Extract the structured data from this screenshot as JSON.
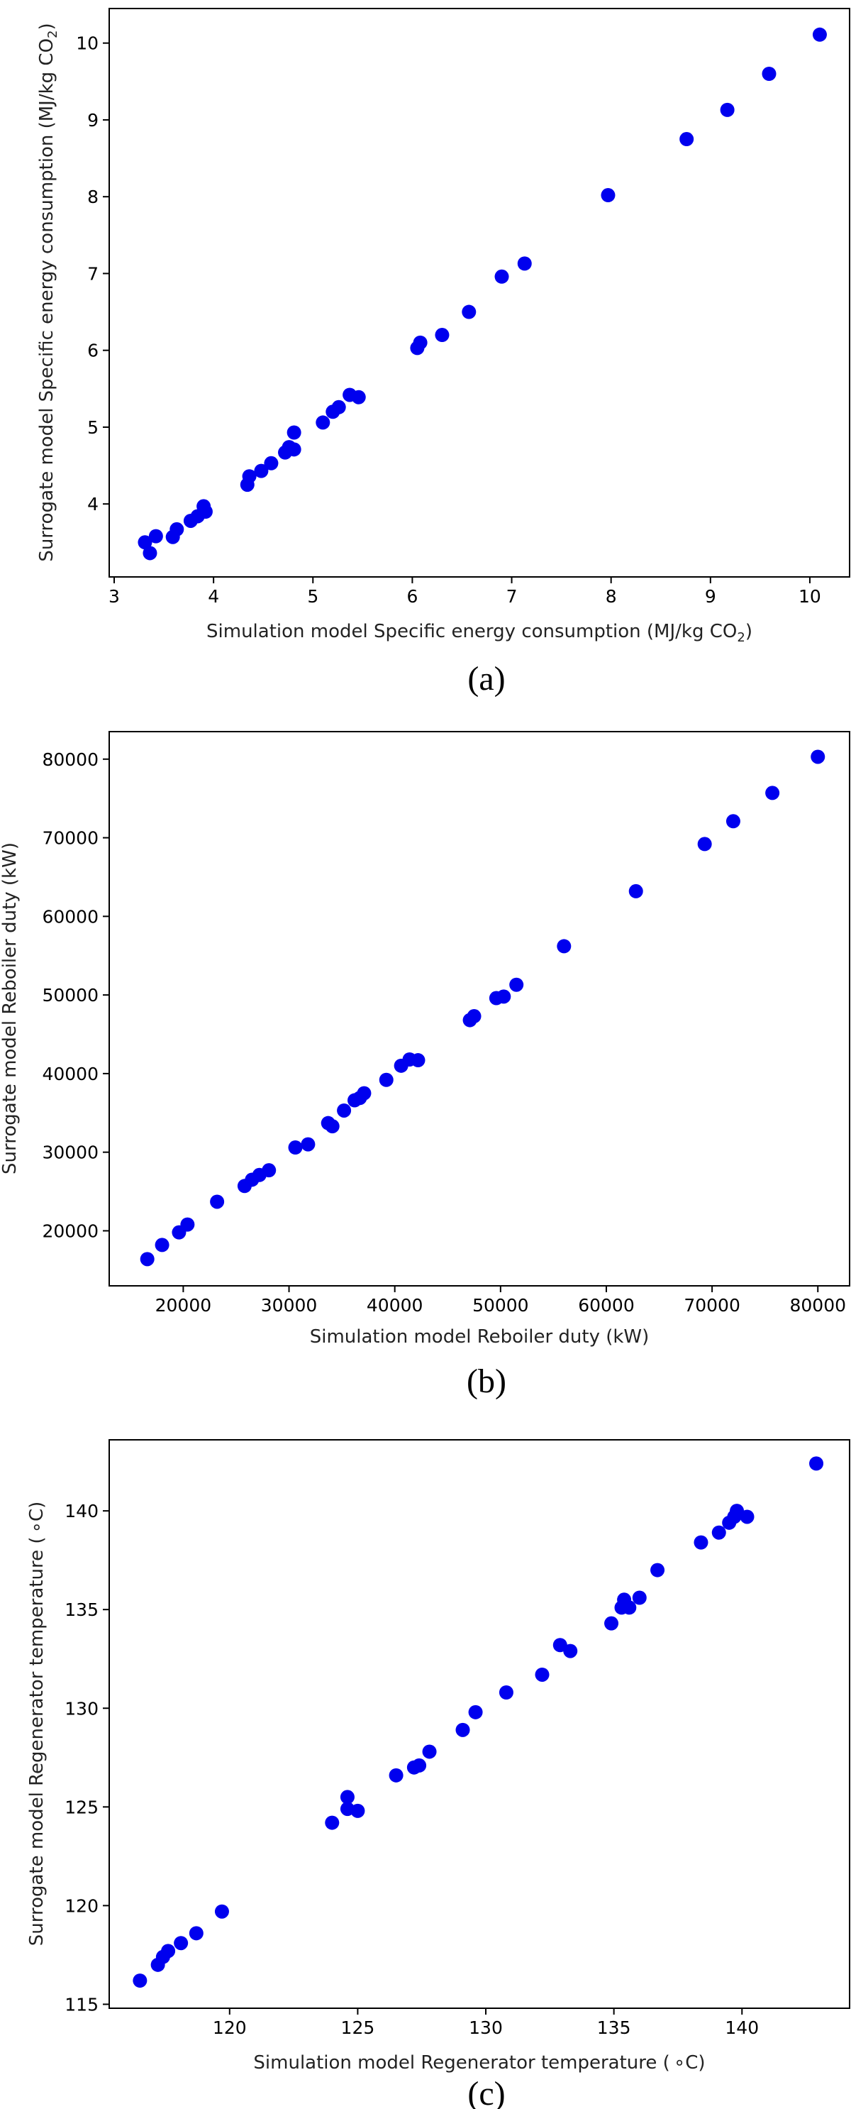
{
  "chart_data": [
    {
      "type": "scatter",
      "panel_label": "(a)",
      "xlabel_main": "Simulation model Specific energy consumption (MJ/kg CO",
      "xlabel_sub": "2",
      "xlabel_end": ")",
      "ylabel_main": "Surrogate model Specific energy consumption (MJ/kg CO",
      "ylabel_sub": "2",
      "ylabel_end": ")",
      "xlim": [
        2.95,
        10.4
      ],
      "ylim": [
        3.05,
        10.45
      ],
      "xticks": [
        3,
        4,
        5,
        6,
        7,
        8,
        9,
        10
      ],
      "yticks": [
        4,
        5,
        6,
        7,
        8,
        9,
        10
      ],
      "xtick_labels": [
        "3",
        "4",
        "5",
        "6",
        "7",
        "8",
        "9",
        "10"
      ],
      "ytick_labels": [
        "4",
        "5",
        "6",
        "7",
        "8",
        "9",
        "10"
      ],
      "points": [
        [
          3.31,
          3.5
        ],
        [
          3.36,
          3.36
        ],
        [
          3.42,
          3.58
        ],
        [
          3.59,
          3.57
        ],
        [
          3.63,
          3.67
        ],
        [
          3.77,
          3.78
        ],
        [
          3.84,
          3.84
        ],
        [
          3.9,
          3.97
        ],
        [
          3.92,
          3.9
        ],
        [
          4.34,
          4.25
        ],
        [
          4.36,
          4.36
        ],
        [
          4.48,
          4.43
        ],
        [
          4.58,
          4.53
        ],
        [
          4.72,
          4.67
        ],
        [
          4.76,
          4.74
        ],
        [
          4.81,
          4.71
        ],
        [
          4.81,
          4.93
        ],
        [
          5.1,
          5.06
        ],
        [
          5.2,
          5.2
        ],
        [
          5.26,
          5.26
        ],
        [
          5.37,
          5.42
        ],
        [
          5.46,
          5.39
        ],
        [
          6.05,
          6.03
        ],
        [
          6.08,
          6.1
        ],
        [
          6.3,
          6.2
        ],
        [
          6.57,
          6.5
        ],
        [
          6.9,
          6.96
        ],
        [
          7.13,
          7.13
        ],
        [
          7.97,
          8.02
        ],
        [
          8.76,
          8.75
        ],
        [
          9.17,
          9.13
        ],
        [
          9.59,
          9.6
        ],
        [
          10.1,
          10.11
        ]
      ]
    },
    {
      "type": "scatter",
      "panel_label": "(b)",
      "xlabel": "Simulation model Reboiler duty (kW)",
      "ylabel": "Surrogate model Reboiler duty (kW)",
      "xlim": [
        13000,
        83000
      ],
      "ylim": [
        13000,
        83500
      ],
      "xticks": [
        20000,
        30000,
        40000,
        50000,
        60000,
        70000,
        80000
      ],
      "yticks": [
        20000,
        30000,
        40000,
        50000,
        60000,
        70000,
        80000
      ],
      "xtick_labels": [
        "20000",
        "30000",
        "40000",
        "50000",
        "60000",
        "70000",
        "80000"
      ],
      "ytick_labels": [
        "20000",
        "30000",
        "40000",
        "50000",
        "60000",
        "70000",
        "80000"
      ],
      "points": [
        [
          16600,
          16400
        ],
        [
          18000,
          18200
        ],
        [
          19600,
          19800
        ],
        [
          20400,
          20800
        ],
        [
          23200,
          23700
        ],
        [
          25800,
          25700
        ],
        [
          26500,
          26500
        ],
        [
          27200,
          27100
        ],
        [
          28100,
          27700
        ],
        [
          30600,
          30600
        ],
        [
          31800,
          31000
        ],
        [
          33700,
          33700
        ],
        [
          34100,
          33300
        ],
        [
          35200,
          35300
        ],
        [
          36200,
          36600
        ],
        [
          36700,
          36900
        ],
        [
          37100,
          37500
        ],
        [
          39200,
          39200
        ],
        [
          40600,
          41000
        ],
        [
          41400,
          41800
        ],
        [
          42200,
          41700
        ],
        [
          47100,
          46800
        ],
        [
          47500,
          47300
        ],
        [
          49600,
          49600
        ],
        [
          50300,
          49800
        ],
        [
          51500,
          51300
        ],
        [
          56000,
          56200
        ],
        [
          62800,
          63200
        ],
        [
          69300,
          69200
        ],
        [
          72000,
          72100
        ],
        [
          75700,
          75700
        ],
        [
          80000,
          80300
        ]
      ]
    },
    {
      "type": "scatter",
      "panel_label": "(c)",
      "xlabel": "Simulation model Regenerator temperature ( ∘C)",
      "ylabel": "Surrogate model Regenerator temperature ( ∘C)",
      "xlim": [
        115.3,
        144.2
      ],
      "ylim": [
        114.8,
        143.6
      ],
      "xticks": [
        120,
        125,
        130,
        135,
        140
      ],
      "yticks": [
        115,
        120,
        125,
        130,
        135,
        140
      ],
      "xtick_labels": [
        "120",
        "125",
        "130",
        "135",
        "140"
      ],
      "ytick_labels": [
        "115",
        "120",
        "125",
        "130",
        "135",
        "140"
      ],
      "points": [
        [
          116.5,
          116.2
        ],
        [
          117.2,
          117.0
        ],
        [
          117.4,
          117.4
        ],
        [
          117.6,
          117.7
        ],
        [
          118.1,
          118.1
        ],
        [
          118.7,
          118.6
        ],
        [
          119.7,
          119.7
        ],
        [
          124.0,
          124.2
        ],
        [
          124.6,
          125.5
        ],
        [
          124.6,
          124.9
        ],
        [
          125.0,
          124.8
        ],
        [
          126.5,
          126.6
        ],
        [
          127.2,
          127.0
        ],
        [
          127.4,
          127.1
        ],
        [
          127.8,
          127.8
        ],
        [
          129.1,
          128.9
        ],
        [
          129.6,
          129.8
        ],
        [
          130.8,
          130.8
        ],
        [
          132.2,
          131.7
        ],
        [
          132.9,
          133.2
        ],
        [
          133.3,
          132.9
        ],
        [
          134.9,
          134.3
        ],
        [
          135.3,
          135.1
        ],
        [
          135.4,
          135.5
        ],
        [
          135.6,
          135.1
        ],
        [
          136.0,
          135.6
        ],
        [
          136.7,
          137.0
        ],
        [
          138.4,
          138.4
        ],
        [
          139.1,
          138.9
        ],
        [
          139.5,
          139.4
        ],
        [
          139.7,
          139.7
        ],
        [
          139.8,
          140.0
        ],
        [
          140.2,
          139.7
        ],
        [
          142.9,
          142.4
        ]
      ]
    }
  ]
}
